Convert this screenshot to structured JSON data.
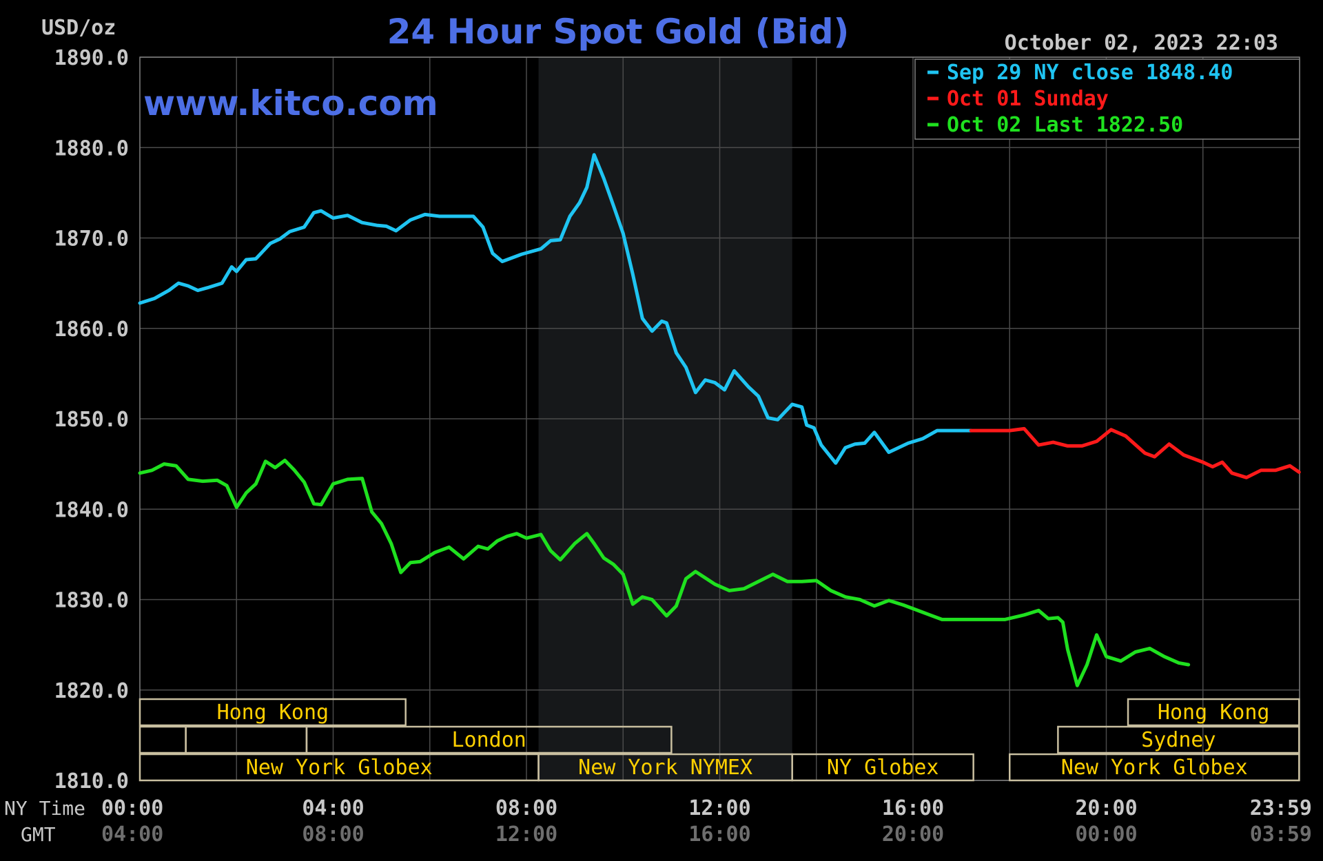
{
  "header": {
    "units": "USD/oz",
    "title": "24 Hour Spot Gold (Bid)",
    "website": "www.kitco.com",
    "timestamp": "October 02, 2023 22:03"
  },
  "axis_rows": {
    "ny_label": "NY Time",
    "gmt_label": "GMT"
  },
  "colors": {
    "background": "#000000",
    "grid": "#4a4a4a",
    "title": "#4d6fe6",
    "axis_text": "#c8c8c8",
    "gmt_text": "#6e6e6e",
    "session_text": "#ffd000",
    "session_border": "#c9bfa0",
    "nymex_shade": "#16181a",
    "sep29": "#1fc4f2",
    "oct01": "#ff1a1a",
    "oct02": "#1fe11f"
  },
  "sessions": [
    {
      "label": "Hong Kong",
      "row": 0,
      "start": 0,
      "end": 5.5
    },
    {
      "label": "Hong Kong",
      "row": 0,
      "start": 20.45,
      "end": 23.99
    },
    {
      "label": "",
      "row": 1,
      "start": 0,
      "end": 0.95
    },
    {
      "label": "",
      "row": 1,
      "start": 0.95,
      "end": 3.45
    },
    {
      "label": "London",
      "row": 1,
      "start": 3.45,
      "end": 11.0
    },
    {
      "label": "Sydney",
      "row": 1,
      "start": 19.0,
      "end": 23.99
    },
    {
      "label": "New York Globex",
      "row": 2,
      "start": 0,
      "end": 8.25
    },
    {
      "label": "New York NYMEX",
      "row": 2,
      "start": 8.25,
      "end": 13.5
    },
    {
      "label": "NY Globex",
      "row": 2,
      "start": 13.5,
      "end": 17.25
    },
    {
      "label": "New York Globex",
      "row": 2,
      "start": 18.0,
      "end": 23.99
    }
  ],
  "nymex_hours": [
    8.25,
    13.5
  ],
  "chart_data": {
    "type": "line",
    "title": "24 Hour Spot Gold (Bid)",
    "ylabel": "USD/oz",
    "ylim": [
      1810,
      1890
    ],
    "xlim": [
      0,
      24
    ],
    "grid": true,
    "legend_position": "top-right",
    "y_ticks": [
      "1810.0",
      "1820.0",
      "1830.0",
      "1840.0",
      "1850.0",
      "1860.0",
      "1870.0",
      "1880.0",
      "1890.0"
    ],
    "x_ticks": [
      {
        "ny": "00:00",
        "gmt": "04:00"
      },
      {
        "ny": "04:00",
        "gmt": "08:00"
      },
      {
        "ny": "08:00",
        "gmt": "12:00"
      },
      {
        "ny": "12:00",
        "gmt": "16:00"
      },
      {
        "ny": "16:00",
        "gmt": "20:00"
      },
      {
        "ny": "20:00",
        "gmt": "00:00"
      },
      {
        "ny": "23:59",
        "gmt": "03:59"
      }
    ],
    "legend": [
      {
        "text": "Sep 29 NY close 1848.40",
        "color": "#1fc4f2"
      },
      {
        "text": "Oct 01 Sunday",
        "color": "#ff1a1a"
      },
      {
        "text": "Oct 02 Last 1822.50",
        "color": "#1fe11f"
      }
    ],
    "series": [
      {
        "name": "Sep 29 NY close 1848.40",
        "color": "#1fc4f2",
        "x": [
          0,
          0.3,
          0.6,
          0.8,
          1.0,
          1.2,
          1.4,
          1.7,
          1.9,
          2.0,
          2.2,
          2.4,
          2.7,
          2.9,
          3.1,
          3.4,
          3.6,
          3.75,
          4.0,
          4.3,
          4.6,
          4.9,
          5.1,
          5.3,
          5.6,
          5.9,
          6.2,
          6.5,
          6.9,
          7.1,
          7.3,
          7.5,
          7.9,
          8.3,
          8.5,
          8.7,
          8.9,
          9.1,
          9.25,
          9.4,
          9.6,
          9.8,
          10.0,
          10.2,
          10.4,
          10.6,
          10.8,
          10.9,
          11.1,
          11.3,
          11.5,
          11.7,
          11.9,
          12.1,
          12.3,
          12.6,
          12.8,
          13.0,
          13.2,
          13.5,
          13.7,
          13.8,
          13.95,
          14.1,
          14.4,
          14.6,
          14.8,
          15.0,
          15.2,
          15.5,
          15.9,
          16.2,
          16.5,
          16.8,
          17.0,
          17.2
        ],
        "values": [
          1862.8,
          1863.3,
          1864.2,
          1865.0,
          1864.7,
          1864.2,
          1864.5,
          1865.0,
          1866.8,
          1866.3,
          1867.6,
          1867.7,
          1869.4,
          1869.9,
          1870.7,
          1871.2,
          1872.8,
          1873.0,
          1872.2,
          1872.5,
          1871.7,
          1871.4,
          1871.3,
          1870.8,
          1872.0,
          1872.6,
          1872.4,
          1872.4,
          1872.4,
          1871.2,
          1868.3,
          1867.4,
          1868.2,
          1868.8,
          1869.7,
          1869.8,
          1872.4,
          1873.9,
          1875.6,
          1879.2,
          1876.6,
          1873.6,
          1870.5,
          1866.0,
          1861.1,
          1859.7,
          1860.8,
          1860.6,
          1857.3,
          1855.7,
          1852.9,
          1854.3,
          1854.0,
          1853.2,
          1855.3,
          1853.5,
          1852.5,
          1850.1,
          1849.9,
          1851.6,
          1851.3,
          1849.3,
          1849.0,
          1847.1,
          1845.1,
          1846.8,
          1847.2,
          1847.3,
          1848.5,
          1846.3,
          1847.3,
          1847.8,
          1848.7,
          1848.7,
          1848.7,
          1848.7
        ]
      },
      {
        "name": "Oct 01 Sunday",
        "color": "#ff1a1a",
        "x": [
          17.2,
          17.5,
          18.0,
          18.3,
          18.6,
          18.9,
          19.2,
          19.5,
          19.8,
          20.1,
          20.4,
          20.8,
          21.0,
          21.3,
          21.6,
          22.0,
          22.2,
          22.4,
          22.6,
          22.9,
          23.2,
          23.5,
          23.8,
          23.99
        ],
        "values": [
          1848.7,
          1848.7,
          1848.7,
          1848.9,
          1847.1,
          1847.4,
          1847.0,
          1847.0,
          1847.5,
          1848.8,
          1848.1,
          1846.2,
          1845.8,
          1847.2,
          1846.0,
          1845.2,
          1844.7,
          1845.2,
          1844.0,
          1843.5,
          1844.3,
          1844.3,
          1844.8,
          1844.1
        ]
      },
      {
        "name": "Oct 02 Last 1822.50",
        "color": "#1fe11f",
        "x": [
          0,
          0.25,
          0.5,
          0.75,
          1.0,
          1.3,
          1.6,
          1.8,
          2.0,
          2.2,
          2.4,
          2.6,
          2.8,
          3.0,
          3.2,
          3.4,
          3.6,
          3.75,
          4.0,
          4.3,
          4.6,
          4.8,
          5.0,
          5.2,
          5.4,
          5.6,
          5.8,
          6.1,
          6.4,
          6.7,
          7.0,
          7.2,
          7.4,
          7.6,
          7.8,
          8.0,
          8.3,
          8.5,
          8.7,
          9.0,
          9.25,
          9.4,
          9.6,
          9.8,
          10.0,
          10.2,
          10.4,
          10.6,
          10.8,
          10.9,
          11.1,
          11.3,
          11.5,
          11.7,
          11.9,
          12.2,
          12.5,
          12.8,
          13.1,
          13.4,
          13.7,
          14.0,
          14.3,
          14.6,
          14.9,
          15.2,
          15.5,
          15.8,
          16.2,
          16.6,
          17.0,
          17.3,
          17.6,
          17.9,
          18.3,
          18.6,
          18.8,
          19.0,
          19.1,
          19.2,
          19.4,
          19.6,
          19.8,
          20.0,
          20.3,
          20.6,
          20.9,
          21.2,
          21.5,
          21.7
        ],
        "values": [
          1844.0,
          1844.3,
          1845.0,
          1844.8,
          1843.3,
          1843.1,
          1843.2,
          1842.6,
          1840.2,
          1841.8,
          1842.8,
          1845.3,
          1844.6,
          1845.4,
          1844.3,
          1843.0,
          1840.6,
          1840.5,
          1842.8,
          1843.3,
          1843.4,
          1839.7,
          1838.4,
          1836.2,
          1833.0,
          1834.1,
          1834.2,
          1835.2,
          1835.8,
          1834.5,
          1835.9,
          1835.6,
          1836.5,
          1837.0,
          1837.3,
          1836.8,
          1837.2,
          1835.4,
          1834.4,
          1836.2,
          1837.3,
          1836.2,
          1834.6,
          1833.9,
          1832.8,
          1829.5,
          1830.3,
          1830.0,
          1828.8,
          1828.2,
          1829.3,
          1832.3,
          1833.1,
          1832.4,
          1831.7,
          1831.0,
          1831.2,
          1832.0,
          1832.8,
          1832.0,
          1832.0,
          1832.1,
          1831.0,
          1830.3,
          1830.0,
          1829.3,
          1829.9,
          1829.4,
          1828.6,
          1827.8,
          1827.8,
          1827.8,
          1827.8,
          1827.8,
          1828.3,
          1828.8,
          1827.9,
          1828.0,
          1827.5,
          1824.5,
          1820.5,
          1822.8,
          1826.1,
          1823.7,
          1823.2,
          1824.2,
          1824.6,
          1823.7,
          1823.0,
          1822.8
        ]
      }
    ]
  }
}
